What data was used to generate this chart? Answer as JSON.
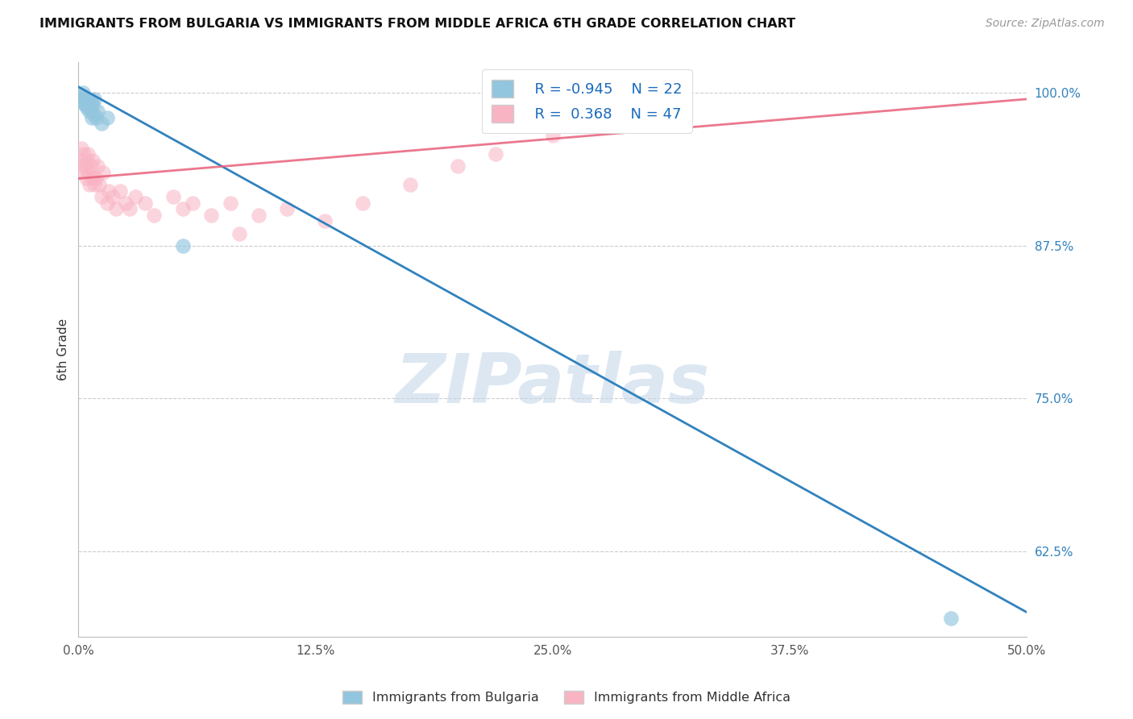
{
  "title": "IMMIGRANTS FROM BULGARIA VS IMMIGRANTS FROM MIDDLE AFRICA 6TH GRADE CORRELATION CHART",
  "source_text": "Source: ZipAtlas.com",
  "xlabel_ticks": [
    "0.0%",
    "12.5%",
    "25.0%",
    "37.5%",
    "50.0%"
  ],
  "xlabel_tick_vals": [
    0.0,
    12.5,
    25.0,
    37.5,
    50.0
  ],
  "ylabel_ticks": [
    "62.5%",
    "75.0%",
    "87.5%",
    "100.0%"
  ],
  "ylabel_tick_vals": [
    62.5,
    75.0,
    87.5,
    100.0
  ],
  "xlim": [
    0.0,
    50.0
  ],
  "ylim": [
    55.5,
    102.5
  ],
  "ylabel": "6th Grade",
  "legend_r1": "R = -0.945",
  "legend_n1": "N = 22",
  "legend_r2": "R =  0.368",
  "legend_n2": "N = 47",
  "legend_label1": "Immigrants from Bulgaria",
  "legend_label2": "Immigrants from Middle Africa",
  "blue_color": "#92c5de",
  "pink_color": "#f9b4c4",
  "blue_line_color": "#3182bd",
  "pink_line_color": "#e8607a",
  "watermark": "ZIPatlas",
  "bulgaria_x": [
    0.1,
    0.15,
    0.2,
    0.25,
    0.3,
    0.35,
    0.4,
    0.45,
    0.5,
    0.55,
    0.6,
    0.65,
    0.7,
    0.75,
    0.8,
    0.85,
    0.9,
    1.0,
    1.2,
    1.5,
    5.5,
    46.0
  ],
  "bulgaria_y": [
    99.8,
    99.5,
    99.2,
    100.0,
    99.6,
    99.0,
    99.3,
    98.8,
    99.5,
    99.0,
    98.5,
    99.2,
    98.0,
    99.0,
    98.3,
    99.5,
    98.0,
    98.5,
    97.5,
    98.0,
    87.5,
    57.0
  ],
  "midafrica_x": [
    0.1,
    0.15,
    0.2,
    0.25,
    0.3,
    0.35,
    0.4,
    0.45,
    0.5,
    0.55,
    0.6,
    0.65,
    0.7,
    0.75,
    0.8,
    0.85,
    0.9,
    1.0,
    1.1,
    1.2,
    1.3,
    1.5,
    1.6,
    1.8,
    2.0,
    2.2,
    2.5,
    2.7,
    3.0,
    3.5,
    4.0,
    5.0,
    5.5,
    6.0,
    7.0,
    8.0,
    8.5,
    9.5,
    11.0,
    13.0,
    15.0,
    17.5,
    20.0,
    22.0,
    25.0,
    27.0,
    30.0
  ],
  "midafrica_y": [
    94.5,
    95.5,
    94.0,
    93.5,
    95.0,
    94.0,
    93.0,
    94.5,
    95.0,
    93.5,
    92.5,
    94.0,
    93.0,
    94.5,
    93.0,
    92.5,
    93.0,
    94.0,
    92.5,
    91.5,
    93.5,
    91.0,
    92.0,
    91.5,
    90.5,
    92.0,
    91.0,
    90.5,
    91.5,
    91.0,
    90.0,
    91.5,
    90.5,
    91.0,
    90.0,
    91.0,
    88.5,
    90.0,
    90.5,
    89.5,
    91.0,
    92.5,
    94.0,
    95.0,
    96.5,
    97.5,
    98.5
  ],
  "blue_line_x0": 0.0,
  "blue_line_y0": 100.5,
  "blue_line_x1": 50.0,
  "blue_line_y1": 57.5,
  "pink_line_x0": 0.0,
  "pink_line_y0": 93.0,
  "pink_line_x1": 50.0,
  "pink_line_y1": 99.5
}
